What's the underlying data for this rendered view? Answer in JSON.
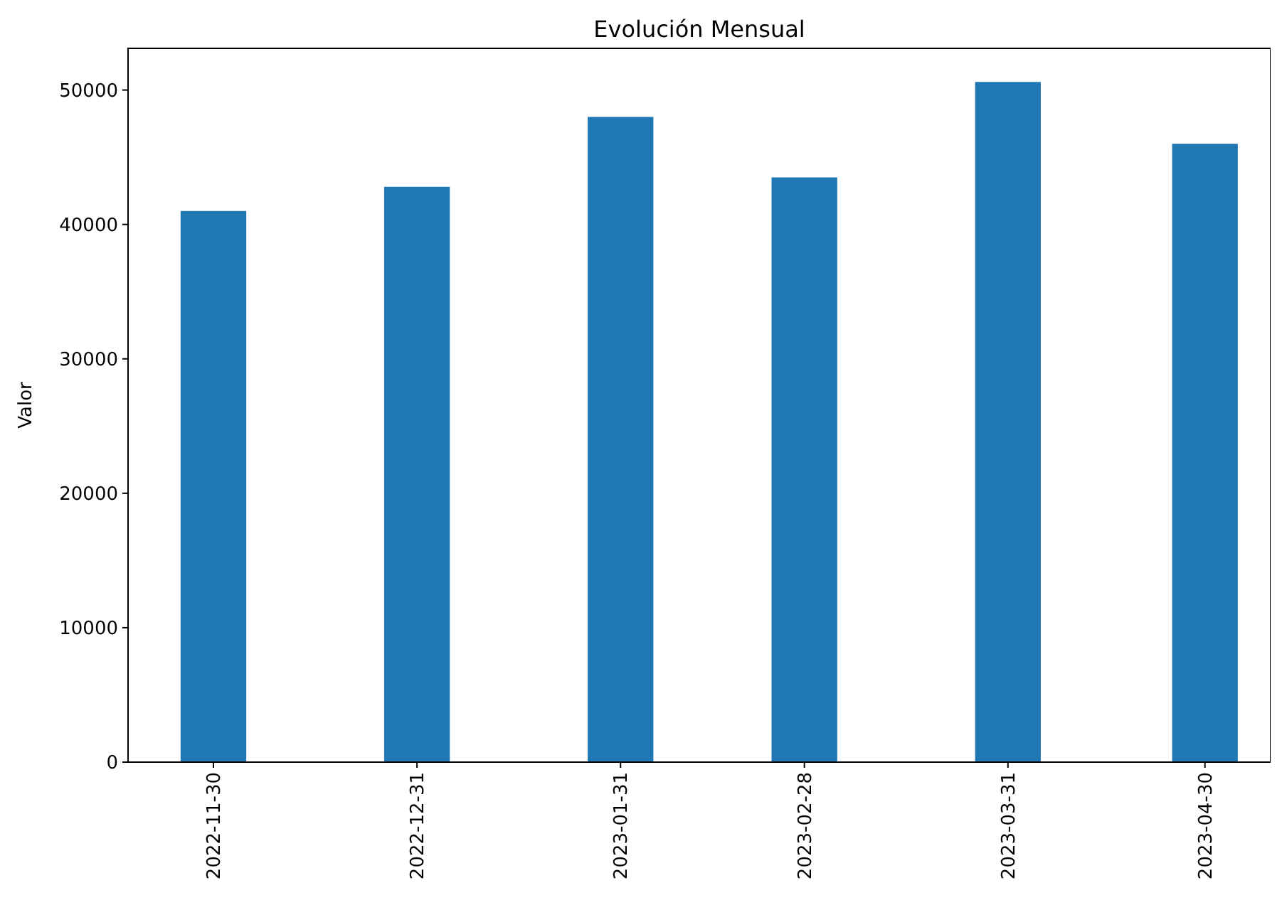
{
  "chart_data": {
    "type": "bar",
    "title": "Evolución Mensual",
    "ylabel": "Valor",
    "x": [
      "2022-11-30",
      "2022-12-31",
      "2023-01-31",
      "2023-02-28",
      "2023-03-31",
      "2023-04-30"
    ],
    "values": [
      41000,
      42800,
      48000,
      43500,
      50600,
      46000
    ],
    "color": "#1f77b4",
    "xlim": [
      "2022-11-17",
      "2023-05-10"
    ],
    "xticks": [
      "2022-11-30",
      "2022-12-31",
      "2023-01-31",
      "2023-02-28",
      "2023-03-31",
      "2023-04-30"
    ],
    "ylim": [
      0,
      53100
    ],
    "yticks": [
      0,
      10000,
      20000,
      30000,
      40000,
      50000
    ],
    "grid": false
  }
}
